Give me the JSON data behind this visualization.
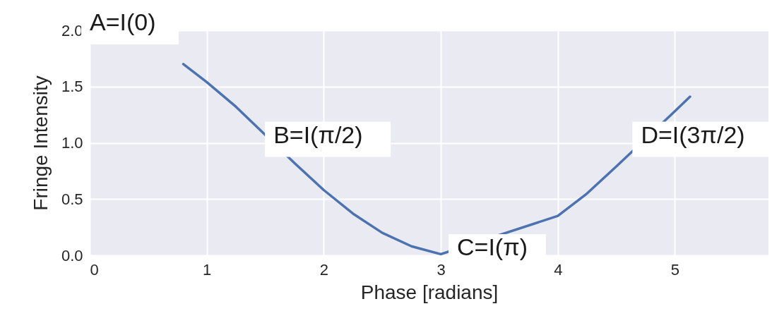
{
  "chart_data": {
    "type": "line",
    "xlabel": "Phase [radians]",
    "ylabel": "Fringe Intensity",
    "x": [
      0.8,
      1,
      1.25,
      1.5,
      1.75,
      2,
      2.25,
      2.5,
      2.75,
      3,
      4,
      4.25,
      4.5,
      5,
      5.13
    ],
    "series": [
      {
        "color": "#4c72b0",
        "values": [
          1.7,
          1.54,
          1.32,
          1.07,
          0.82,
          0.58,
          0.37,
          0.2,
          0.08,
          0.01,
          0.35,
          0.55,
          0.79,
          1.28,
          1.41
        ]
      }
    ],
    "xlim": [
      0,
      5.8
    ],
    "xticks": [
      0,
      1,
      2,
      3,
      4,
      5
    ],
    "ylim": [
      0,
      2
    ],
    "yticks": [
      {
        "value": 0,
        "label": "0.0"
      },
      {
        "value": 0.5,
        "label": "0.5"
      },
      {
        "value": 1,
        "label": "1.0"
      },
      {
        "value": 1.5,
        "label": "1.5"
      },
      {
        "value": 2,
        "label": "2.0"
      }
    ],
    "grid": true,
    "line_style": "solid",
    "marker": "none",
    "annotations": [
      "A=I(0)",
      {
        "text": "B=I(π/2)",
        "x": 1.57,
        "y": 1
      },
      "C=I(π)",
      {
        "text": "D=I(3π/2)",
        "x": 4.71,
        "y": 1
      }
    ]
  }
}
